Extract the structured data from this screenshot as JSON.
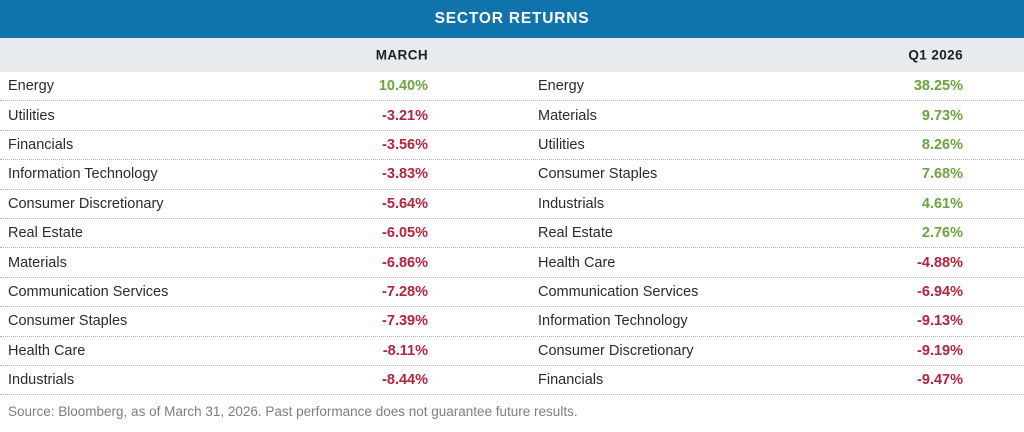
{
  "title": "SECTOR RETURNS",
  "footer": "Source: Bloomberg, as of March 31, 2026. Past performance does not guarantee future results.",
  "colors": {
    "header_bg": "#1173ac",
    "subheader_bg": "#e7ebee",
    "positive": "#6aa53d",
    "negative": "#b5233d",
    "row_divider": "#a9b1b3",
    "footer_text": "#7c7e81"
  },
  "chart_data": {
    "type": "table",
    "title": "SECTOR RETURNS",
    "columns": [
      "MARCH",
      "Q1 2026"
    ],
    "value_format": "percent, two decimals, negative in red, positive in green",
    "tables": [
      {
        "header": "MARCH",
        "rows": [
          [
            "Energy",
            10.4
          ],
          [
            "Utilities",
            -3.21
          ],
          [
            "Financials",
            -3.56
          ],
          [
            "Information Technology",
            -3.83
          ],
          [
            "Consumer Discretionary",
            -5.64
          ],
          [
            "Real Estate",
            -6.05
          ],
          [
            "Materials",
            -6.86
          ],
          [
            "Communication Services",
            -7.28
          ],
          [
            "Consumer Staples",
            -7.39
          ],
          [
            "Health Care",
            -8.11
          ],
          [
            "Industrials",
            -8.44
          ]
        ]
      },
      {
        "header": "Q1 2026",
        "rows": [
          [
            "Energy",
            38.25
          ],
          [
            "Materials",
            9.73
          ],
          [
            "Utilities",
            8.26
          ],
          [
            "Consumer Staples",
            7.68
          ],
          [
            "Industrials",
            4.61
          ],
          [
            "Real Estate",
            2.76
          ],
          [
            "Health Care",
            -4.88
          ],
          [
            "Communication Services",
            -6.94
          ],
          [
            "Information Technology",
            -9.13
          ],
          [
            "Consumer Discretionary",
            -9.19
          ],
          [
            "Financials",
            -9.47
          ]
        ]
      }
    ]
  }
}
